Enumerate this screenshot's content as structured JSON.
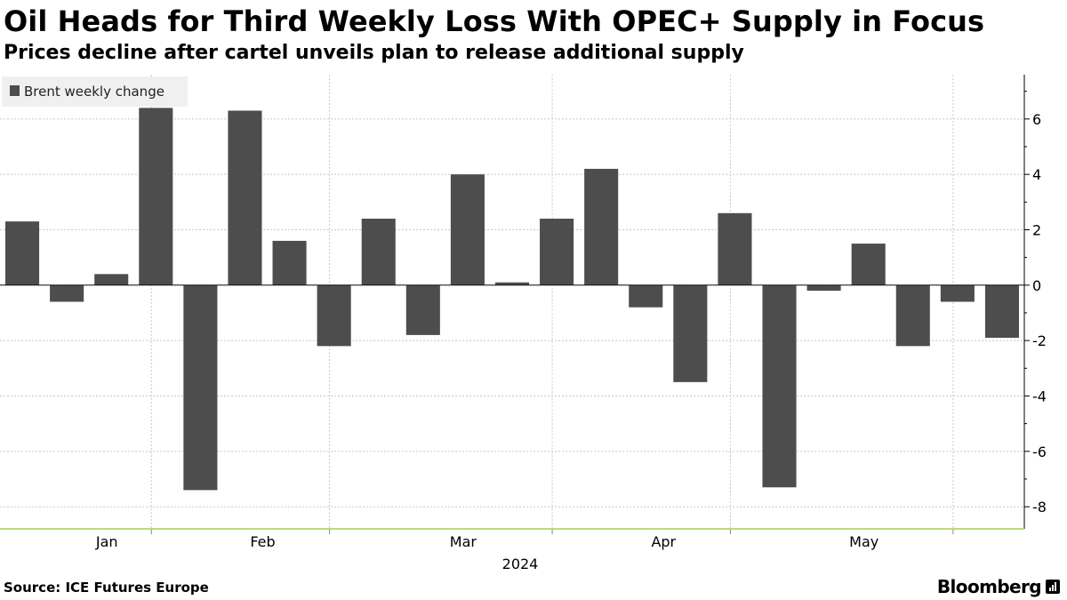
{
  "header": {
    "title": "Oil Heads for Third Weekly Loss With OPEC+ Supply in Focus",
    "subtitle": "Prices decline after cartel unveils plan to release additional supply"
  },
  "footer": {
    "source": "Source: ICE Futures Europe",
    "brand": "Bloomberg"
  },
  "colors": {
    "bar": "#4d4d4d",
    "grid": "#c8c8c8",
    "axis": "#000000",
    "baseline": "#a8d04a",
    "legend_bg": "#f0f0f0"
  },
  "chart_data": {
    "type": "bar",
    "legend": {
      "entries": [
        "Brent weekly change"
      ],
      "placement": "top-left"
    },
    "series": [
      {
        "name": "Brent weekly change",
        "values": [
          2.3,
          -0.6,
          0.4,
          6.4,
          -7.4,
          6.3,
          1.6,
          -2.2,
          2.4,
          -1.8,
          4.0,
          0.1,
          2.4,
          4.2,
          -0.8,
          -3.5,
          2.6,
          -7.3,
          -0.2,
          1.5,
          -2.2,
          -0.6,
          -1.9
        ]
      }
    ],
    "ylim": [
      -8.8,
      7.6
    ],
    "yticks": [
      6,
      4,
      2,
      0,
      -2,
      -4,
      -6,
      -8
    ],
    "ytick_labels": [
      "6",
      "4",
      "2",
      "0",
      "-2",
      "-4",
      "-6",
      "-8"
    ],
    "x_month_labels": [
      {
        "label": "Jan",
        "center_week": 1.9
      },
      {
        "label": "Feb",
        "center_week": 5.4
      },
      {
        "label": "Mar",
        "center_week": 9.9
      },
      {
        "label": "Apr",
        "center_week": 14.4
      },
      {
        "label": "May",
        "center_week": 18.9
      }
    ],
    "month_boundaries_week": [
      3.4,
      7.4,
      12.4,
      16.4,
      21.4
    ],
    "year_label": "2024",
    "grid": true,
    "y_axis_side": "right"
  }
}
